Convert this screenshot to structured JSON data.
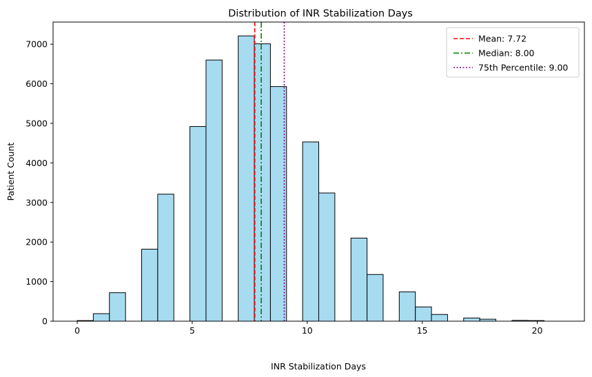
{
  "chart_data": {
    "type": "bar",
    "title": "Distribution of INR Stabilization Days",
    "xlabel": "INR Stabilization Days",
    "ylabel": "Patient Count",
    "xlim": [
      -1.05,
      22.05
    ],
    "ylim": [
      0,
      7560
    ],
    "xticks": [
      0,
      5,
      10,
      15,
      20
    ],
    "yticks": [
      0,
      1000,
      2000,
      3000,
      4000,
      5000,
      6000,
      7000
    ],
    "bin_edges": [
      0,
      0.7,
      1.4,
      2.1,
      2.8,
      3.5,
      4.2,
      4.9,
      5.6,
      6.3,
      7.0,
      7.7,
      8.4,
      9.1,
      9.8,
      10.5,
      11.2,
      11.9,
      12.6,
      13.3,
      14.0,
      14.7,
      15.4,
      16.1,
      16.8,
      17.5,
      18.2,
      18.9,
      19.6,
      20.3,
      21.0
    ],
    "values": [
      15,
      190,
      720,
      0,
      1820,
      3210,
      0,
      4920,
      6600,
      0,
      7210,
      7010,
      5930,
      0,
      4530,
      3240,
      0,
      2100,
      1180,
      0,
      740,
      360,
      170,
      0,
      80,
      50,
      0,
      20,
      15,
      0
    ],
    "bar_color": "#a7dbf0",
    "bar_edge_color": "#000000",
    "reference_lines": [
      {
        "label": "Mean: 7.72",
        "x": 7.72,
        "color": "#ff0000",
        "style": "dashed"
      },
      {
        "label": "Median: 8.00",
        "x": 8.0,
        "color": "#008000",
        "style": "dashdot"
      },
      {
        "label": "75th Percentile: 9.00",
        "x": 9.0,
        "color": "#800080",
        "style": "dotted"
      }
    ],
    "legend_position": "top-right",
    "grid": false
  }
}
